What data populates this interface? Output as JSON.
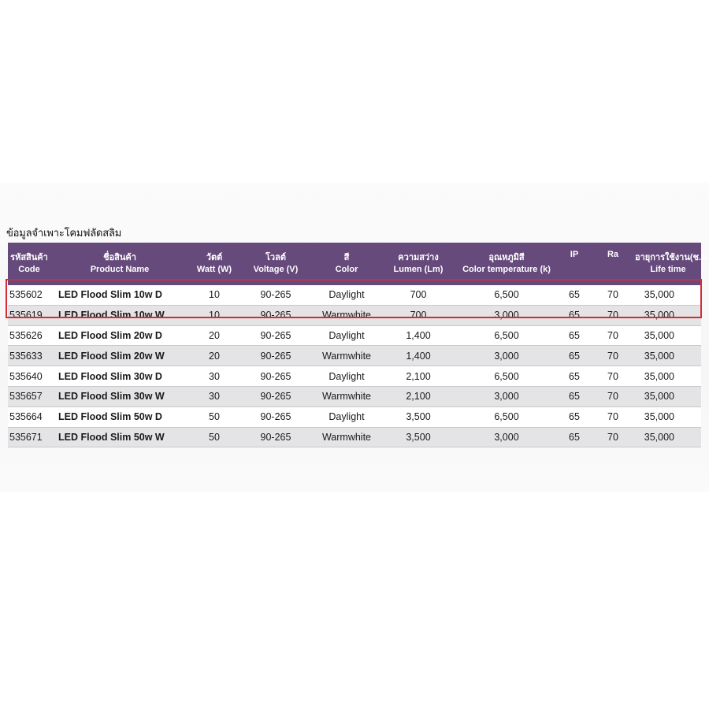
{
  "heading": "ข้อมูลจำเพาะโคมฟลัดสลิม",
  "columns": [
    {
      "th": "รหัสสินค้า",
      "en": "Code"
    },
    {
      "th": "ชื่อสินค้า",
      "en": "Product Name"
    },
    {
      "th": "วัตต์",
      "en": "Watt (W)"
    },
    {
      "th": "โวลต์",
      "en": "Voltage (V)"
    },
    {
      "th": "สี",
      "en": "Color"
    },
    {
      "th": "ความสว่าง",
      "en": "Lumen (Lm)"
    },
    {
      "th": "อุณหภูมิสี",
      "en": "Color temperature (k)"
    },
    {
      "th": "IP",
      "en": ""
    },
    {
      "th": "Ra",
      "en": ""
    },
    {
      "th": "อายุการใช้งาน(ช.ม.)",
      "en": "Life time"
    }
  ],
  "rows": [
    {
      "code": "535602",
      "name": "LED Flood Slim 10w D",
      "watt": "10",
      "voltage": "90-265",
      "color": "Daylight",
      "lumen": "700",
      "temp": "6,500",
      "ip": "65",
      "ra": "70",
      "life": "35,000"
    },
    {
      "code": "535619",
      "name": "LED Flood Slim 10w W",
      "watt": "10",
      "voltage": "90-265",
      "color": "Warmwhite",
      "lumen": "700",
      "temp": "3,000",
      "ip": "65",
      "ra": "70",
      "life": "35,000"
    },
    {
      "code": "535626",
      "name": "LED Flood Slim 20w D",
      "watt": "20",
      "voltage": "90-265",
      "color": "Daylight",
      "lumen": "1,400",
      "temp": "6,500",
      "ip": "65",
      "ra": "70",
      "life": "35,000"
    },
    {
      "code": "535633",
      "name": "LED Flood Slim 20w W",
      "watt": "20",
      "voltage": "90-265",
      "color": "Warmwhite",
      "lumen": "1,400",
      "temp": "3,000",
      "ip": "65",
      "ra": "70",
      "life": "35,000"
    },
    {
      "code": "535640",
      "name": "LED Flood Slim 30w D",
      "watt": "30",
      "voltage": "90-265",
      "color": "Daylight",
      "lumen": "2,100",
      "temp": "6,500",
      "ip": "65",
      "ra": "70",
      "life": "35,000"
    },
    {
      "code": "535657",
      "name": "LED Flood Slim 30w W",
      "watt": "30",
      "voltage": "90-265",
      "color": "Warmwhite",
      "lumen": "2,100",
      "temp": "3,000",
      "ip": "65",
      "ra": "70",
      "life": "35,000"
    },
    {
      "code": "535664",
      "name": "LED Flood Slim 50w D",
      "watt": "50",
      "voltage": "90-265",
      "color": "Daylight",
      "lumen": "3,500",
      "temp": "6,500",
      "ip": "65",
      "ra": "70",
      "life": "35,000"
    },
    {
      "code": "535671",
      "name": "LED Flood Slim 50w W",
      "watt": "50",
      "voltage": "90-265",
      "color": "Warmwhite",
      "lumen": "3,500",
      "temp": "3,000",
      "ip": "65",
      "ra": "70",
      "life": "35,000"
    }
  ],
  "colors": {
    "header_bg": "#664a7c",
    "highlight_border": "#d62b36",
    "stripe": "#e4e4e6"
  },
  "highlighted_rows": [
    0,
    1
  ]
}
